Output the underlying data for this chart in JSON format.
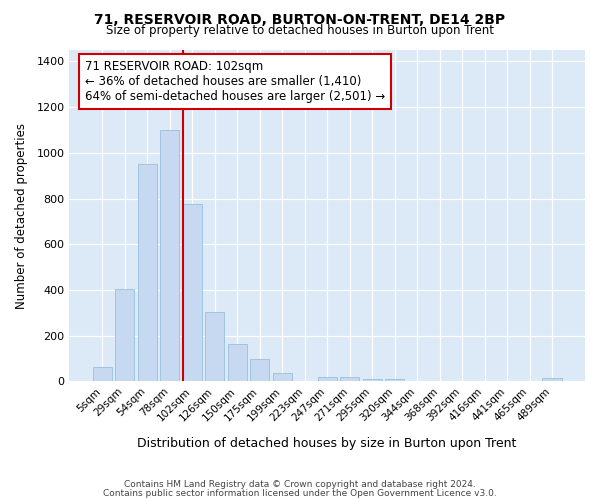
{
  "title1": "71, RESERVOIR ROAD, BURTON-ON-TRENT, DE14 2BP",
  "title2": "Size of property relative to detached houses in Burton upon Trent",
  "xlabel": "Distribution of detached houses by size in Burton upon Trent",
  "ylabel": "Number of detached properties",
  "footnote1": "Contains HM Land Registry data © Crown copyright and database right 2024.",
  "footnote2": "Contains public sector information licensed under the Open Government Licence v3.0.",
  "bar_labels": [
    "5sqm",
    "29sqm",
    "54sqm",
    "78sqm",
    "102sqm",
    "126sqm",
    "150sqm",
    "175sqm",
    "199sqm",
    "223sqm",
    "247sqm",
    "271sqm",
    "295sqm",
    "320sqm",
    "344sqm",
    "368sqm",
    "392sqm",
    "416sqm",
    "441sqm",
    "465sqm",
    "489sqm"
  ],
  "bar_values": [
    65,
    405,
    950,
    1100,
    775,
    305,
    165,
    100,
    35,
    0,
    18,
    18,
    10,
    10,
    0,
    0,
    0,
    0,
    0,
    0,
    15
  ],
  "bar_color": "#c6d9f0",
  "bar_edge_color": "#9bbfde",
  "highlight_line_index": 4,
  "highlight_line_color": "#cc0000",
  "ylim": [
    0,
    1450
  ],
  "yticks": [
    0,
    200,
    400,
    600,
    800,
    1000,
    1200,
    1400
  ],
  "annotation_text": "71 RESERVOIR ROAD: 102sqm\n← 36% of detached houses are smaller (1,410)\n64% of semi-detached houses are larger (2,501) →",
  "fig_bg_color": "#ffffff",
  "plot_bg_color": "#dce9f7",
  "grid_color": "#ffffff"
}
